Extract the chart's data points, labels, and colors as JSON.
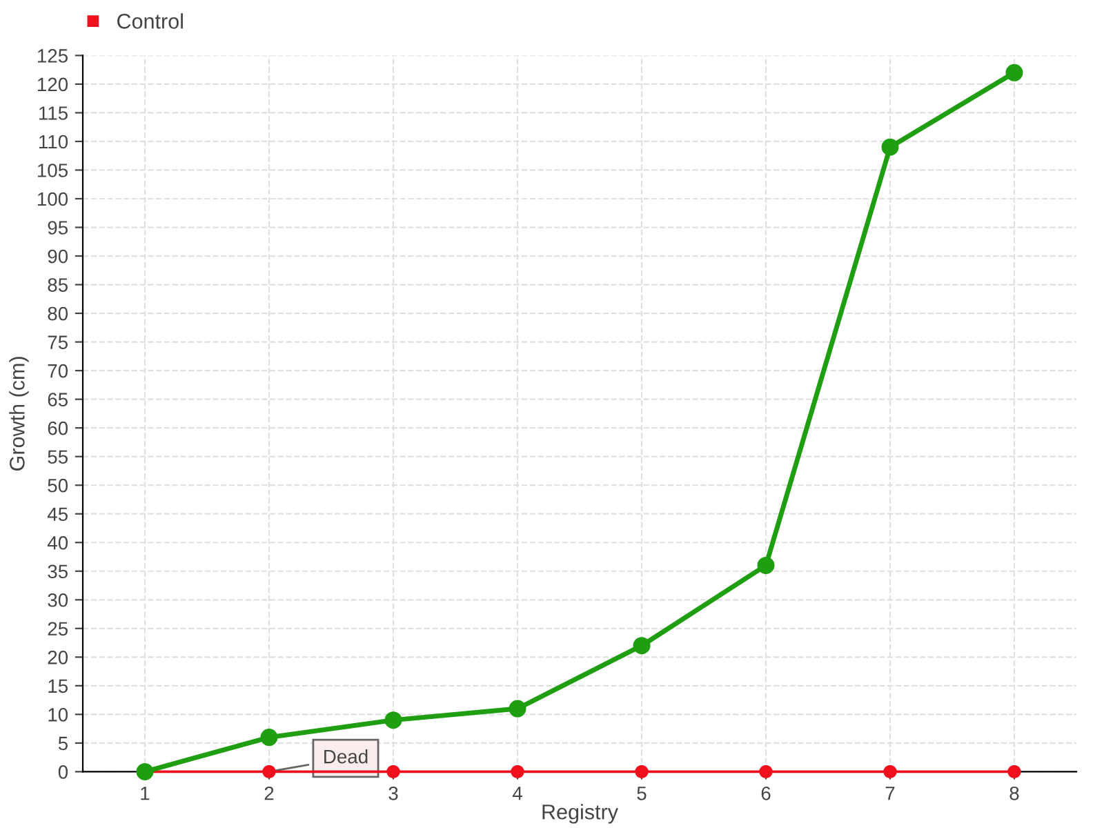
{
  "chart_data": {
    "type": "line",
    "xlabel": "Registry",
    "ylabel": "Growth (cm)",
    "categories": [
      "1",
      "2",
      "3",
      "4",
      "5",
      "6",
      "7",
      "8"
    ],
    "series": [
      {
        "color": "#1f9e12",
        "values": [
          0,
          6,
          9,
          11,
          22,
          36,
          109,
          122
        ]
      },
      {
        "name": "Control",
        "color": "#f0101e",
        "values": [
          0,
          0,
          0,
          0,
          0,
          0,
          0,
          0
        ]
      }
    ],
    "annotations": [
      {
        "text": "Dead",
        "x": "2",
        "y": 0
      }
    ],
    "ylim": [
      0,
      125
    ],
    "yticks": [
      0,
      5,
      10,
      15,
      20,
      25,
      30,
      35,
      40,
      45,
      50,
      55,
      60,
      65,
      70,
      75,
      80,
      85,
      90,
      95,
      100,
      105,
      110,
      115,
      120,
      125
    ],
    "grid": true,
    "legend": "top left",
    "marker": "circle",
    "line_style": "solid"
  }
}
